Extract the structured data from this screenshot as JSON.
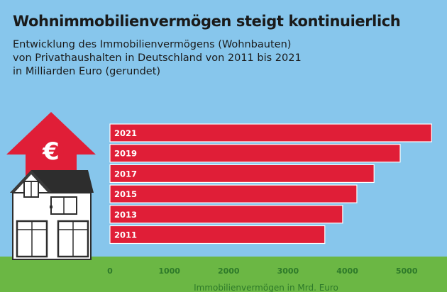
{
  "title": "Wohnimmobilienvermögen steigt kontinuierlich",
  "subtitle_lines": [
    "Entwicklung des Immobilienvermögens (Wohnbauten)",
    "von Privathaushalten in Deutschland von 2011 bis 2021",
    "in Milliarden Euro (gerundet)"
  ],
  "icon": "euro-sign",
  "colors": {
    "background": "#87c6ec",
    "bar": "#e01e37",
    "bar_label": "#ffffff",
    "ground": "#6bb744",
    "axis_text": "#2e7a2a"
  },
  "chart_data": {
    "type": "bar",
    "orientation": "horizontal",
    "categories": [
      "2021",
      "2019",
      "2017",
      "2015",
      "2013",
      "2011"
    ],
    "values": [
      5420,
      4890,
      4450,
      4160,
      3920,
      3620
    ],
    "xlim": [
      0,
      5440
    ],
    "xticks": [
      0,
      1000,
      2000,
      3000,
      4000,
      5000
    ],
    "xlabel": "Immobilienvermögen in Mrd. Euro",
    "ylabel": "",
    "grid": false
  }
}
